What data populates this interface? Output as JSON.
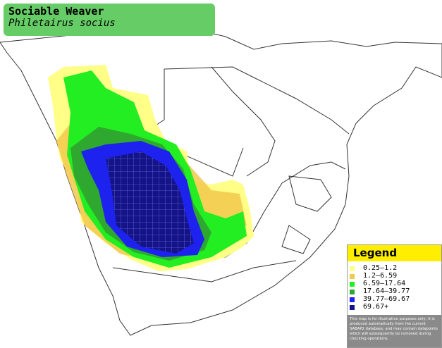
{
  "header": {
    "title": "Sociable Weaver",
    "subtitle": "Philetairus socius"
  },
  "legend": {
    "title": "Legend",
    "items": [
      {
        "label": "0.25–1.2",
        "color": "#ffff88"
      },
      {
        "label": "1.2–6.59",
        "color": "#f2c94c"
      },
      {
        "label": "6.59–17.64",
        "color": "#22ee22"
      },
      {
        "label": "17.64–39.77",
        "color": "#2ea82e"
      },
      {
        "label": "39.77–69.67",
        "color": "#1e22ee"
      },
      {
        "label": "69.67+",
        "color": "#141488"
      }
    ],
    "note": "This map is for illustrative purposes only; it is produced automatically from the current SABAP2 database, and may contain datapoints which will subsequently be removed during checking operations."
  }
}
